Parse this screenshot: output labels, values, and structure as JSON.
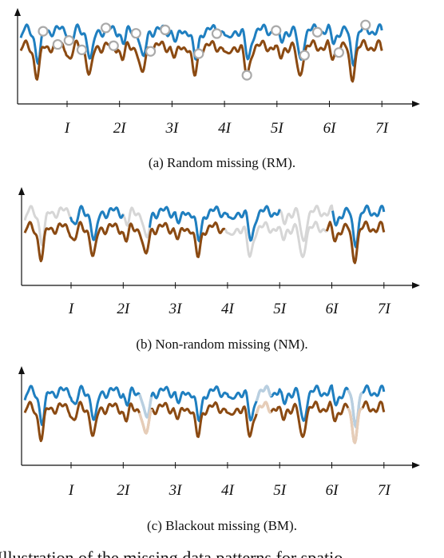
{
  "colors": {
    "series_blue": "#1f7fc0",
    "series_brown": "#8b4a12",
    "missing": "#d6d6d6",
    "axis": "#111111"
  },
  "x_ticks": [
    "I",
    "2I",
    "3I",
    "4I",
    "5I",
    "6I",
    "7I"
  ],
  "panels": [
    {
      "id": "rm",
      "caption": "(a) Random missing (RM).",
      "pattern": "random"
    },
    {
      "id": "nm",
      "caption": "(b) Non-random missing (NM).",
      "pattern": "non-random"
    },
    {
      "id": "bm",
      "caption": "(c) Blackout missing (BM).",
      "pattern": "blackout"
    }
  ],
  "truncated_caption": "Illustration of the missing data patterns for spatio"
}
